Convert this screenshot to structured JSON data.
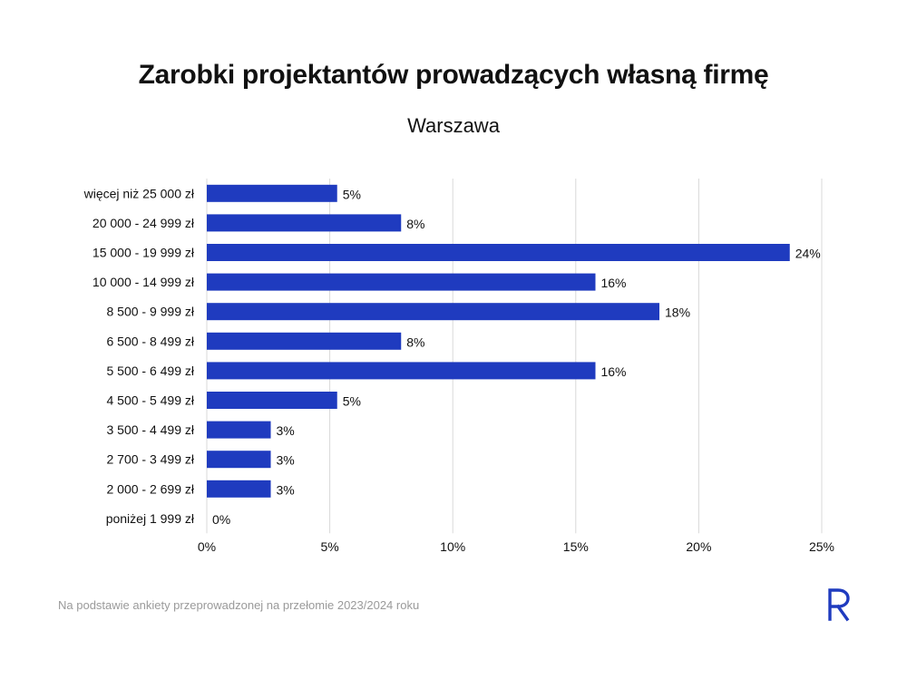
{
  "title": "Zarobki projektantów prowadzących własną firmę",
  "subtitle": "Warszawa",
  "footnote": "Na podstawie ankiety przeprowadzonej na przełomie 2023/2024 roku",
  "logo_icon": "r-logo-icon",
  "colors": {
    "bar": "#1f3bbf",
    "grid": "#d9d9d9",
    "logo": "#1f3bbf"
  },
  "chart_data": {
    "type": "bar",
    "orientation": "horizontal",
    "title": "Zarobki projektantów prowadzących własną firmę",
    "subtitle": "Warszawa",
    "categories": [
      "więcej niż 25 000 zł",
      "20 000 - 24 999 zł",
      "15 000 - 19 999 zł",
      "10 000 - 14 999 zł",
      "8 500 - 9 999 zł",
      "6 500 - 8 499 zł",
      "5 500 - 6 499 zł",
      "4 500 - 5 499 zł",
      "3 500 - 4 499 zł",
      "2 700 - 3 499 zł",
      "2 000 - 2 699 zł",
      "poniżej 1 999 zł"
    ],
    "values": [
      5.3,
      7.9,
      23.7,
      15.8,
      18.4,
      7.9,
      15.8,
      5.3,
      2.6,
      2.6,
      2.6,
      0
    ],
    "data_labels": [
      "5%",
      "8%",
      "24%",
      "16%",
      "18%",
      "8%",
      "16%",
      "5%",
      "3%",
      "3%",
      "3%",
      "0%"
    ],
    "x_ticks": [
      0,
      5,
      10,
      15,
      20,
      25
    ],
    "x_tick_labels": [
      "0%",
      "5%",
      "10%",
      "15%",
      "20%",
      "25%"
    ],
    "xlim": [
      0,
      25
    ],
    "grid": "vertical",
    "legend": "none"
  }
}
